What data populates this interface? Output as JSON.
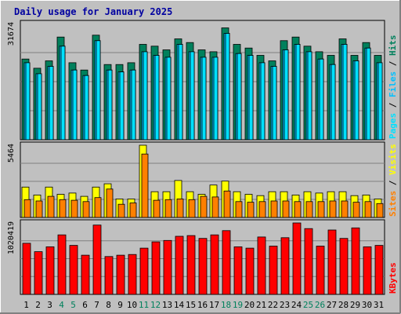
{
  "colors": {
    "background": "#C0C0C0",
    "title": "#0000A0",
    "hits": "#00805C",
    "files": "#00C0FF",
    "pages": "#00E0FF",
    "visits": "#FFFF00",
    "sites": "#FF8000",
    "kbytes": "#FF0000",
    "weekend_label": "#00805C",
    "grid": "#808080"
  },
  "chart_data": {
    "type": "bar",
    "title": "Daily usage for January 2025",
    "days": [
      "1",
      "2",
      "3",
      "4",
      "5",
      "6",
      "7",
      "8",
      "9",
      "10",
      "11",
      "12",
      "13",
      "14",
      "15",
      "16",
      "17",
      "18",
      "19",
      "20",
      "21",
      "22",
      "23",
      "24",
      "25",
      "26",
      "27",
      "28",
      "29",
      "30",
      "31"
    ],
    "weekend_days": [
      "4",
      "5",
      "11",
      "12",
      "18",
      "19",
      "25",
      "26"
    ],
    "panels": [
      {
        "id": "top",
        "max_label": "31674",
        "ylim": [
          0,
          31674
        ],
        "legend": [
          "Pages",
          "Files",
          "Hits"
        ],
        "series": [
          {
            "name": "Hits",
            "values": [
              22000,
              19500,
              21500,
              28000,
              21000,
              19000,
              28500,
              20500,
              20500,
              21000,
              26000,
              25500,
              24500,
              27500,
              26500,
              24500,
              24000,
              30500,
              26000,
              25000,
              23000,
              21500,
              27000,
              28000,
              25500,
              24000,
              23000,
              27500,
              23000,
              26500,
              23000
            ]
          },
          {
            "name": "Files",
            "values": [
              21000,
              18000,
              20000,
              25500,
              19000,
              17500,
              27000,
              19000,
              18500,
              19000,
              24000,
              23000,
              22500,
              26000,
              24000,
              22500,
              22500,
              29000,
              23500,
              23000,
              21000,
              20000,
              24500,
              26000,
              24000,
              22000,
              20500,
              26000,
              21500,
              25000,
              21000
            ]
          },
          {
            "name": "Pages",
            "values": [
              21000,
              18000,
              20000,
              25500,
              19000,
              17500,
              27000,
              19000,
              18500,
              19000,
              24000,
              23000,
              22500,
              26000,
              24000,
              22500,
              22500,
              29000,
              23500,
              23000,
              21000,
              20000,
              24500,
              26000,
              24000,
              22000,
              20500,
              26000,
              21500,
              25000,
              21000
            ]
          }
        ]
      },
      {
        "id": "middle",
        "max_label": "5464",
        "ylim": [
          0,
          5464
        ],
        "legend": [
          "Sites",
          "Visits"
        ],
        "series": [
          {
            "name": "Visits",
            "values": [
              2300,
              1700,
              2300,
              1750,
              1850,
              1600,
              2300,
              2550,
              1400,
              1400,
              5464,
              1950,
              1950,
              2800,
              1950,
              1750,
              2450,
              2750,
              1950,
              1750,
              1650,
              1950,
              1950,
              1700,
              1950,
              1850,
              1950,
              1950,
              1650,
              1700,
              1400
            ]
          },
          {
            "name": "Sites",
            "values": [
              1350,
              1250,
              1600,
              1350,
              1300,
              1200,
              1500,
              2150,
              1000,
              1100,
              4800,
              1300,
              1350,
              1400,
              1350,
              1600,
              1550,
              2000,
              1200,
              1150,
              1200,
              1250,
              1250,
              1200,
              1200,
              1200,
              1250,
              1250,
              1150,
              1200,
              1050
            ]
          }
        ]
      },
      {
        "id": "bottom",
        "max_label": "1020419",
        "ylim": [
          0,
          1020419
        ],
        "legend": [
          "KBytes"
        ],
        "series": [
          {
            "name": "KBytes",
            "values": [
              730000,
              610000,
              680000,
              850000,
              700000,
              560000,
              990000,
              540000,
              560000,
              570000,
              660000,
              750000,
              770000,
              830000,
              840000,
              800000,
              850000,
              910000,
              680000,
              660000,
              820000,
              690000,
              810000,
              1020419,
              940000,
              690000,
              920000,
              800000,
              950000,
              680000,
              700000
            ]
          }
        ]
      }
    ]
  }
}
